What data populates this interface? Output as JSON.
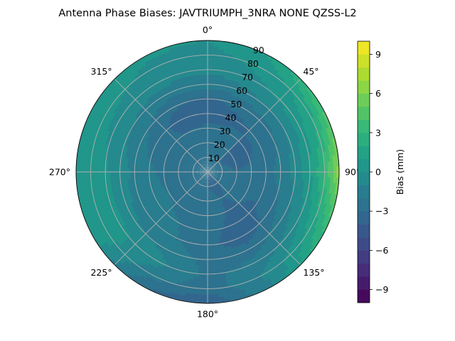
{
  "chart_data": {
    "type": "heatmap",
    "subtype": "polar-contour",
    "title": "Antenna Phase Biases: JAVTRIUMPH_3NRA NONE QZSS-L2",
    "angular_ticks": [
      "0°",
      "45°",
      "90°",
      "135°",
      "180°",
      "225°",
      "270°",
      "315°"
    ],
    "radial_ticks": [
      "10",
      "20",
      "30",
      "40",
      "50",
      "60",
      "70",
      "80",
      "90"
    ],
    "radial_range": [
      0,
      90
    ],
    "grid": true,
    "colorbar": {
      "label": "Bias (mm)",
      "range": [
        -10,
        10
      ],
      "ticks": [
        "-9",
        "-6",
        "-3",
        "0",
        "3",
        "6",
        "9"
      ],
      "tick_values": [
        -9,
        -6,
        -3,
        0,
        3,
        6,
        9
      ],
      "colormap": "viridis",
      "levels": 20
    },
    "colors": {
      "c0": "#440154",
      "c1": "#482878",
      "c2": "#3e4a89",
      "c3": "#31688e",
      "c4": "#26828e",
      "c5": "#1f9e89",
      "c6": "#35b779",
      "c7": "#6ece58",
      "c8": "#b5de2b",
      "c9": "#fde725"
    },
    "field": {
      "description_of_values": "bias in mm by azimuth (deg) and zenith angle (deg)",
      "rings": [
        0,
        10,
        20,
        30,
        40,
        50,
        60,
        70,
        80,
        90
      ],
      "azimuths": [
        0,
        30,
        60,
        90,
        120,
        150,
        180,
        210,
        240,
        270,
        300,
        330
      ],
      "values": [
        [
          -3.0,
          -3.0,
          -3.0,
          -3.0,
          -3.0,
          -3.0,
          -3.0,
          -3.0,
          -3.0,
          -3.0,
          -3.0,
          -3.0
        ],
        [
          -2.5,
          -2.8,
          -3.0,
          -2.6,
          -2.8,
          -3.2,
          -3.0,
          -2.6,
          -2.4,
          -2.6,
          -2.8,
          -2.6
        ],
        [
          -2.4,
          -2.6,
          -3.4,
          -3.0,
          -2.8,
          -3.0,
          -2.8,
          -2.4,
          -2.2,
          -2.3,
          -2.6,
          -2.5
        ],
        [
          -2.8,
          -2.8,
          -3.2,
          -2.8,
          -2.9,
          -3.1,
          -2.6,
          -2.2,
          -2.0,
          -2.2,
          -2.6,
          -3.0
        ],
        [
          -3.6,
          -3.2,
          -2.8,
          -2.4,
          -3.0,
          -3.4,
          -2.6,
          -2.0,
          -1.6,
          -1.8,
          -2.4,
          -3.4
        ],
        [
          -3.2,
          -2.6,
          -2.2,
          -1.6,
          -2.4,
          -3.6,
          -2.8,
          -1.8,
          -1.4,
          -1.2,
          -1.8,
          -2.8
        ],
        [
          -1.6,
          -1.2,
          -1.0,
          -0.6,
          -1.4,
          -2.6,
          -2.4,
          -1.2,
          -0.8,
          -0.6,
          -1.0,
          -1.4
        ],
        [
          -0.8,
          -0.2,
          0.6,
          0.8,
          -0.2,
          -1.6,
          -2.2,
          -0.6,
          0.4,
          0.2,
          -0.4,
          -0.6
        ],
        [
          -0.4,
          0.4,
          1.6,
          3.2,
          1.4,
          -0.8,
          -2.6,
          -1.6,
          0.6,
          0.8,
          0.4,
          -0.2
        ],
        [
          0.0,
          1.2,
          4.0,
          6.5,
          3.0,
          -1.0,
          -4.0,
          -3.0,
          0.5,
          1.0,
          0.8,
          0.2
        ]
      ]
    }
  }
}
